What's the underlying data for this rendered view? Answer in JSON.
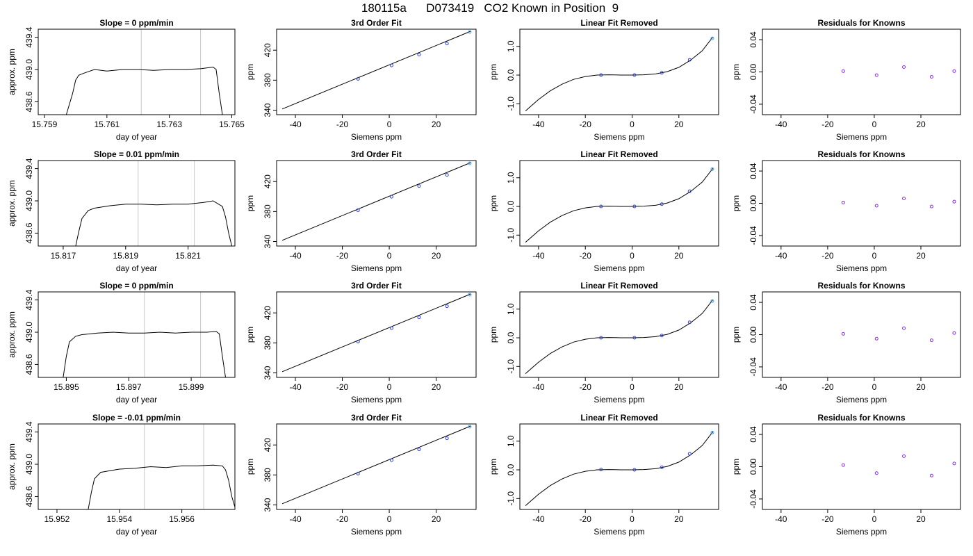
{
  "supertitle": "180115a      D073419   CO2 Known in Position  9",
  "chart_data": [
    {
      "row": 0,
      "col": 0,
      "type": "line",
      "title": "Slope =  0  ppm/min",
      "xlabel": "day of year",
      "ylabel": "approx. ppm",
      "xlim": [
        15.7588,
        15.7651
      ],
      "ylim": [
        438.44,
        439.5
      ],
      "xticks": [
        15.759,
        15.761,
        15.763,
        15.765
      ],
      "xticklabels": [
        "15.759",
        "15.761",
        "15.763",
        "15.765"
      ],
      "yticks": [
        438.6,
        439.0,
        439.4
      ],
      "yticklabels": [
        "438.6",
        "439.0",
        "439.4"
      ],
      "vlines": [
        15.7621,
        15.764
      ],
      "x": [
        15.7597,
        15.7599,
        15.76,
        15.7601,
        15.7603,
        15.7606,
        15.761,
        15.7615,
        15.762,
        15.7625,
        15.763,
        15.7635,
        15.764,
        15.7644,
        15.7645,
        15.7646,
        15.7647
      ],
      "y": [
        438.44,
        438.7,
        438.87,
        438.93,
        438.96,
        439.0,
        438.98,
        439.0,
        439.0,
        438.99,
        439.0,
        439.0,
        439.01,
        439.03,
        439.0,
        438.7,
        438.44
      ]
    },
    {
      "row": 0,
      "col": 1,
      "type": "scatter+line",
      "title": "3rd Order Fit",
      "xlabel": "Siemens ppm",
      "ylabel": "ppm",
      "xlim": [
        -48,
        37
      ],
      "ylim": [
        334,
        448
      ],
      "xticks": [
        -40,
        -20,
        0,
        20
      ],
      "xticklabels": [
        "-40",
        "-20",
        "0",
        "20"
      ],
      "yticks": [
        340,
        380,
        420
      ],
      "yticklabels": [
        "340",
        "380",
        "420"
      ],
      "line": {
        "x": [
          -45.6,
          34.6
        ],
        "y": [
          341.6,
          445.1
        ]
      },
      "points": {
        "x": [
          -13.3,
          1.0,
          12.7,
          24.6,
          34.3
        ],
        "y": [
          381.8,
          399.7,
          414.1,
          428.9,
          444.3
        ]
      }
    },
    {
      "row": 0,
      "col": 2,
      "type": "scatter+line",
      "title": "Linear Fit Removed",
      "xlabel": "Siemens ppm",
      "ylabel": "ppm",
      "xlim": [
        -48,
        37
      ],
      "ylim": [
        -1.38,
        1.6
      ],
      "xticks": [
        -40,
        -20,
        0,
        20
      ],
      "xticklabels": [
        "-40",
        "-20",
        "0",
        "20"
      ],
      "yticks": [
        -1.0,
        0.0,
        1.0
      ],
      "yticklabels": [
        "-1.0",
        "0.0",
        "1.0"
      ],
      "curve": {
        "x": [
          -45.6,
          -40,
          -35,
          -30,
          -25,
          -20,
          -15,
          -10,
          -5,
          0,
          5,
          10,
          15,
          20,
          25,
          30,
          34.6
        ],
        "y": [
          -1.25,
          -0.85,
          -0.55,
          -0.32,
          -0.15,
          -0.05,
          0.0,
          0.01,
          0.0,
          0.0,
          0.01,
          0.04,
          0.12,
          0.27,
          0.52,
          0.85,
          1.33
        ]
      },
      "points": {
        "x": [
          -13.3,
          1.0,
          12.7,
          24.6,
          34.3
        ],
        "y": [
          0.0,
          0.0,
          0.08,
          0.53,
          1.28
        ]
      }
    },
    {
      "row": 0,
      "col": 3,
      "type": "scatter",
      "title": "Residuals for Knowns",
      "xlabel": "Siemens ppm",
      "ylabel": "ppm",
      "xlim": [
        -48,
        37
      ],
      "ylim": [
        -0.053,
        0.053
      ],
      "xticks": [
        -40,
        -20,
        0,
        20
      ],
      "xticklabels": [
        "-40",
        "-20",
        "0",
        "20"
      ],
      "yticks": [
        -0.04,
        0.0,
        0.04
      ],
      "yticklabels": [
        "-0.04",
        "0.00",
        "0.04"
      ],
      "points": {
        "x": [
          -13.3,
          1.0,
          12.7,
          24.6,
          34.3
        ],
        "y": [
          0.001,
          -0.004,
          0.006,
          -0.006,
          0.001
        ]
      }
    },
    {
      "row": 1,
      "col": 0,
      "type": "line",
      "title": "Slope =  0.01  ppm/min",
      "xlabel": "day of year",
      "ylabel": "approx. ppm",
      "xlim": [
        15.8162,
        15.8225
      ],
      "ylim": [
        438.44,
        439.5
      ],
      "xticks": [
        15.817,
        15.819,
        15.821
      ],
      "xticklabels": [
        "15.817",
        "15.819",
        "15.821"
      ],
      "yticks": [
        438.6,
        439.0,
        439.4
      ],
      "yticklabels": [
        "438.6",
        "439.0",
        "439.4"
      ],
      "vlines": [
        15.8194,
        15.8212
      ],
      "x": [
        15.8174,
        15.8175,
        15.8176,
        15.8178,
        15.818,
        15.8185,
        15.819,
        15.8195,
        15.82,
        15.8205,
        15.821,
        15.8215,
        15.8218,
        15.8221,
        15.8222,
        15.8223,
        15.8224
      ],
      "y": [
        438.44,
        438.62,
        438.78,
        438.88,
        438.91,
        438.94,
        438.96,
        438.96,
        438.95,
        438.96,
        438.96,
        438.98,
        439.0,
        438.93,
        438.8,
        438.6,
        438.44
      ]
    },
    {
      "row": 1,
      "col": 1,
      "type": "scatter+line",
      "title": "3rd Order Fit",
      "xlabel": "Siemens ppm",
      "ylabel": "ppm",
      "xlim": [
        -48,
        37
      ],
      "ylim": [
        334,
        448
      ],
      "xticks": [
        -40,
        -20,
        0,
        20
      ],
      "xticklabels": [
        "-40",
        "-20",
        "0",
        "20"
      ],
      "yticks": [
        340,
        380,
        420
      ],
      "yticklabels": [
        "340",
        "380",
        "420"
      ],
      "line": {
        "x": [
          -45.6,
          34.6
        ],
        "y": [
          341.6,
          445.1
        ]
      },
      "points": {
        "x": [
          -13.3,
          1.0,
          12.7,
          24.6,
          34.3
        ],
        "y": [
          381.8,
          399.7,
          414.1,
          428.9,
          444.3
        ]
      }
    },
    {
      "row": 1,
      "col": 2,
      "type": "scatter+line",
      "title": "Linear Fit Removed",
      "xlabel": "Siemens ppm",
      "ylabel": "ppm",
      "xlim": [
        -48,
        37
      ],
      "ylim": [
        -1.38,
        1.6
      ],
      "xticks": [
        -40,
        -20,
        0,
        20
      ],
      "xticklabels": [
        "-40",
        "-20",
        "0",
        "20"
      ],
      "yticks": [
        -1.0,
        0.0,
        1.0
      ],
      "yticklabels": [
        "-1.0",
        "0.0",
        "1.0"
      ],
      "curve": {
        "x": [
          -45.6,
          -40,
          -35,
          -30,
          -25,
          -20,
          -15,
          -10,
          -5,
          0,
          5,
          10,
          15,
          20,
          25,
          30,
          34.6
        ],
        "y": [
          -1.25,
          -0.85,
          -0.55,
          -0.32,
          -0.15,
          -0.05,
          0.0,
          0.01,
          0.0,
          0.0,
          0.01,
          0.04,
          0.12,
          0.27,
          0.52,
          0.85,
          1.33
        ]
      },
      "points": {
        "x": [
          -13.3,
          1.0,
          12.7,
          24.6,
          34.3
        ],
        "y": [
          0.0,
          0.0,
          0.08,
          0.53,
          1.3
        ]
      }
    },
    {
      "row": 1,
      "col": 3,
      "type": "scatter",
      "title": "Residuals for Knowns",
      "xlabel": "Siemens ppm",
      "ylabel": "ppm",
      "xlim": [
        -48,
        37
      ],
      "ylim": [
        -0.053,
        0.053
      ],
      "xticks": [
        -40,
        -20,
        0,
        20
      ],
      "xticklabels": [
        "-40",
        "-20",
        "0",
        "20"
      ],
      "yticks": [
        -0.04,
        0.0,
        0.04
      ],
      "yticklabels": [
        "-0.04",
        "0.00",
        "0.04"
      ],
      "points": {
        "x": [
          -13.3,
          1.0,
          12.7,
          24.6,
          34.3
        ],
        "y": [
          0.001,
          -0.003,
          0.006,
          -0.004,
          0.002
        ]
      }
    },
    {
      "row": 2,
      "col": 0,
      "type": "line",
      "title": "Slope =  0  ppm/min",
      "xlabel": "day of year",
      "ylabel": "approx. ppm",
      "xlim": [
        15.8941,
        15.9004
      ],
      "ylim": [
        438.44,
        439.5
      ],
      "xticks": [
        15.895,
        15.897,
        15.899
      ],
      "xticklabels": [
        "15.895",
        "15.897",
        "15.899"
      ],
      "yticks": [
        438.6,
        439.0,
        439.4
      ],
      "yticklabels": [
        "438.6",
        "439.0",
        "439.4"
      ],
      "vlines": [
        15.8975,
        15.8993
      ],
      "x": [
        15.8949,
        15.895,
        15.8951,
        15.8953,
        15.8955,
        15.896,
        15.8965,
        15.897,
        15.8975,
        15.898,
        15.8985,
        15.899,
        15.8995,
        15.8998,
        15.8999,
        15.9,
        15.9001
      ],
      "y": [
        438.44,
        438.7,
        438.88,
        438.95,
        438.97,
        438.99,
        439.0,
        438.99,
        438.99,
        439.0,
        438.99,
        439.0,
        439.0,
        439.01,
        438.98,
        438.7,
        438.44
      ]
    },
    {
      "row": 2,
      "col": 1,
      "type": "scatter+line",
      "title": "3rd Order Fit",
      "xlabel": "Siemens ppm",
      "ylabel": "ppm",
      "xlim": [
        -48,
        37
      ],
      "ylim": [
        334,
        448
      ],
      "xticks": [
        -40,
        -20,
        0,
        20
      ],
      "xticklabels": [
        "-40",
        "-20",
        "0",
        "20"
      ],
      "yticks": [
        340,
        380,
        420
      ],
      "yticklabels": [
        "340",
        "380",
        "420"
      ],
      "line": {
        "x": [
          -45.6,
          34.6
        ],
        "y": [
          341.6,
          445.1
        ]
      },
      "points": {
        "x": [
          -13.3,
          1.0,
          12.7,
          24.6,
          34.3
        ],
        "y": [
          381.8,
          399.7,
          414.1,
          428.9,
          444.3
        ]
      }
    },
    {
      "row": 2,
      "col": 2,
      "type": "scatter+line",
      "title": "Linear Fit Removed",
      "xlabel": "Siemens ppm",
      "ylabel": "ppm",
      "xlim": [
        -48,
        37
      ],
      "ylim": [
        -1.38,
        1.6
      ],
      "xticks": [
        -40,
        -20,
        0,
        20
      ],
      "xticklabels": [
        "-40",
        "-20",
        "0",
        "20"
      ],
      "yticks": [
        -1.0,
        0.0,
        1.0
      ],
      "yticklabels": [
        "-1.0",
        "0.0",
        "1.0"
      ],
      "curve": {
        "x": [
          -45.6,
          -40,
          -35,
          -30,
          -25,
          -20,
          -15,
          -10,
          -5,
          0,
          5,
          10,
          15,
          20,
          25,
          30,
          34.6
        ],
        "y": [
          -1.25,
          -0.85,
          -0.55,
          -0.32,
          -0.15,
          -0.05,
          0.0,
          0.01,
          0.0,
          0.0,
          0.01,
          0.04,
          0.12,
          0.27,
          0.52,
          0.85,
          1.33
        ]
      },
      "points": {
        "x": [
          -13.3,
          1.0,
          12.7,
          24.6,
          34.3
        ],
        "y": [
          0.0,
          0.0,
          0.08,
          0.54,
          1.28
        ]
      }
    },
    {
      "row": 2,
      "col": 3,
      "type": "scatter",
      "title": "Residuals for Knowns",
      "xlabel": "Siemens ppm",
      "ylabel": "ppm",
      "xlim": [
        -48,
        37
      ],
      "ylim": [
        -0.053,
        0.053
      ],
      "xticks": [
        -40,
        -20,
        0,
        20
      ],
      "xticklabels": [
        "-40",
        "-20",
        "0",
        "20"
      ],
      "yticks": [
        -0.04,
        0.0,
        0.04
      ],
      "yticklabels": [
        "-0.04",
        "0.00",
        "0.04"
      ],
      "points": {
        "x": [
          -13.3,
          1.0,
          12.7,
          24.6,
          34.3
        ],
        "y": [
          0.001,
          -0.005,
          0.008,
          -0.007,
          0.002
        ]
      }
    },
    {
      "row": 3,
      "col": 0,
      "type": "line",
      "title": "Slope =  -0.01  ppm/min",
      "xlabel": "day of year",
      "ylabel": "approx. ppm",
      "xlim": [
        15.9514,
        15.9577
      ],
      "ylim": [
        438.44,
        439.5
      ],
      "xticks": [
        15.952,
        15.954,
        15.956
      ],
      "xticklabels": [
        "15.952",
        "15.954",
        "15.956"
      ],
      "yticks": [
        438.6,
        439.0,
        439.4
      ],
      "yticklabels": [
        "438.6",
        "439.0",
        "439.4"
      ],
      "vlines": [
        15.9548,
        15.9567
      ],
      "x": [
        15.953,
        15.9531,
        15.9532,
        15.9534,
        15.9537,
        15.954,
        15.9545,
        15.955,
        15.9555,
        15.956,
        15.9565,
        15.957,
        15.9573,
        15.9574,
        15.9575,
        15.9576,
        15.9577
      ],
      "y": [
        438.44,
        438.65,
        438.82,
        438.9,
        438.92,
        438.94,
        438.95,
        438.97,
        438.96,
        438.98,
        438.98,
        438.99,
        438.98,
        438.93,
        438.8,
        438.6,
        438.47
      ]
    },
    {
      "row": 3,
      "col": 1,
      "type": "scatter+line",
      "title": "3rd Order Fit",
      "xlabel": "Siemens ppm",
      "ylabel": "ppm",
      "xlim": [
        -48,
        37
      ],
      "ylim": [
        334,
        448
      ],
      "xticks": [
        -40,
        -20,
        0,
        20
      ],
      "xticklabels": [
        "-40",
        "-20",
        "0",
        "20"
      ],
      "yticks": [
        340,
        380,
        420
      ],
      "yticklabels": [
        "340",
        "380",
        "420"
      ],
      "line": {
        "x": [
          -45.6,
          34.6
        ],
        "y": [
          341.6,
          445.1
        ]
      },
      "points": {
        "x": [
          -13.3,
          1.0,
          12.7,
          24.6,
          34.3
        ],
        "y": [
          381.8,
          399.7,
          414.1,
          428.9,
          444.3
        ]
      }
    },
    {
      "row": 3,
      "col": 2,
      "type": "scatter+line",
      "title": "Linear Fit Removed",
      "xlabel": "Siemens ppm",
      "ylabel": "ppm",
      "xlim": [
        -48,
        37
      ],
      "ylim": [
        -1.38,
        1.6
      ],
      "xticks": [
        -40,
        -20,
        0,
        20
      ],
      "xticklabels": [
        "-40",
        "-20",
        "0",
        "20"
      ],
      "yticks": [
        -1.0,
        0.0,
        1.0
      ],
      "yticklabels": [
        "-1.0",
        "0.0",
        "1.0"
      ],
      "curve": {
        "x": [
          -45.6,
          -40,
          -35,
          -30,
          -25,
          -20,
          -15,
          -10,
          -5,
          0,
          5,
          10,
          15,
          20,
          25,
          30,
          34.6
        ],
        "y": [
          -1.25,
          -0.85,
          -0.55,
          -0.32,
          -0.15,
          -0.05,
          0.0,
          0.01,
          0.0,
          0.0,
          0.01,
          0.04,
          0.12,
          0.27,
          0.52,
          0.85,
          1.33
        ]
      },
      "points": {
        "x": [
          -13.3,
          1.0,
          12.7,
          24.6,
          34.3
        ],
        "y": [
          0.01,
          0.0,
          0.09,
          0.56,
          1.3
        ]
      }
    },
    {
      "row": 3,
      "col": 3,
      "type": "scatter",
      "title": "Residuals for Knowns",
      "xlabel": "Siemens ppm",
      "ylabel": "ppm",
      "xlim": [
        -48,
        37
      ],
      "ylim": [
        -0.053,
        0.053
      ],
      "xticks": [
        -40,
        -20,
        0,
        20
      ],
      "xticklabels": [
        "-40",
        "-20",
        "0",
        "20"
      ],
      "yticks": [
        -0.04,
        0.0,
        0.04
      ],
      "yticklabels": [
        "-0.04",
        "0.00",
        "0.04"
      ],
      "points": {
        "x": [
          -13.3,
          1.0,
          12.7,
          24.6,
          34.3
        ],
        "y": [
          0.002,
          -0.008,
          0.013,
          -0.011,
          0.004
        ]
      }
    }
  ]
}
